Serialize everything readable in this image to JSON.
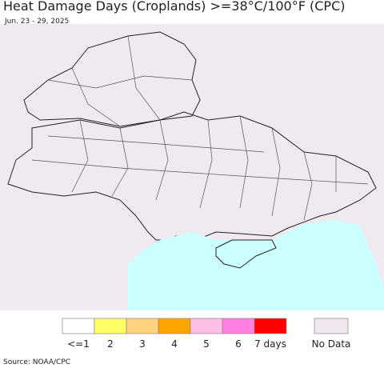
{
  "header": {
    "title": "Heat Damage Days (Croplands) >=38°C/100°F (CPC)",
    "subtitle": "Jun. 23 - 29, 2025"
  },
  "legend": {
    "items": [
      {
        "label": "<=1",
        "color": "#ffffff"
      },
      {
        "label": "2",
        "color": "#ffff66"
      },
      {
        "label": "3",
        "color": "#ffd280"
      },
      {
        "label": "4",
        "color": "#ffa500"
      },
      {
        "label": "5",
        "color": "#ffc0e6"
      },
      {
        "label": "6",
        "color": "#ff80e0"
      },
      {
        "label": "7 days",
        "color": "#ff0000"
      }
    ],
    "no_data": {
      "label": "No Data",
      "color": "#eee8ee"
    }
  },
  "footer": {
    "source": "Source: NOAA/CPC"
  }
}
